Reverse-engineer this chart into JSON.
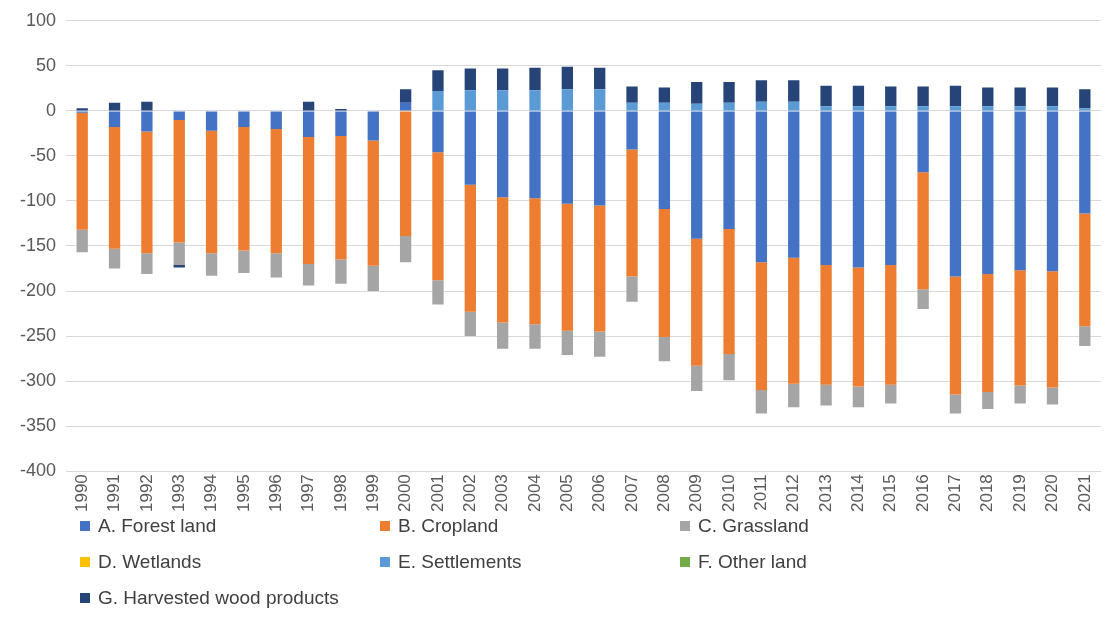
{
  "chart_data": {
    "type": "bar",
    "stacked": true,
    "categories": [
      "1990",
      "1991",
      "1992",
      "1993",
      "1994",
      "1995",
      "1996",
      "1997",
      "1998",
      "1999",
      "2000",
      "2001",
      "2002",
      "2003",
      "2004",
      "2005",
      "2006",
      "2007",
      "2008",
      "2009",
      "2010",
      "2011",
      "2012",
      "2013",
      "2014",
      "2015",
      "2016",
      "2017",
      "2018",
      "2019",
      "2020",
      "2021"
    ],
    "series": [
      {
        "name": "A. Forest land",
        "color": "#4472c4",
        "values": [
          -2,
          -18,
          -23,
          -10,
          -22,
          -18,
          -20,
          -29,
          -28,
          -33,
          9,
          -46,
          -82,
          -96,
          -97,
          -103,
          -105,
          -43,
          -109,
          -142,
          -131,
          -168,
          -163,
          -171,
          -174,
          -171,
          -68,
          -184,
          -181,
          -177,
          -178,
          -114
        ]
      },
      {
        "name": "B. Cropland",
        "color": "#ed7d31",
        "values": [
          -130,
          -135,
          -135,
          -136,
          -136,
          -137,
          -138,
          -141,
          -137,
          -139,
          -139,
          -142,
          -141,
          -139,
          -140,
          -141,
          -140,
          -141,
          -142,
          -141,
          -139,
          -142,
          -140,
          -133,
          -132,
          -133,
          -130,
          -131,
          -131,
          -128,
          -129,
          -125
        ]
      },
      {
        "name": "C. Grassland",
        "color": "#a5a5a5",
        "values": [
          -25,
          -22,
          -23,
          -25,
          -25,
          -25,
          -27,
          -24,
          -27,
          -28,
          -29,
          -27,
          -27,
          -29,
          -27,
          -27,
          -28,
          -28,
          -27,
          -28,
          -29,
          -26,
          -26,
          -23,
          -23,
          -21,
          -22,
          -21,
          -19,
          -20,
          -19,
          -22
        ]
      },
      {
        "name": "D. Wetlands",
        "color": "#ffc000",
        "values": [
          0,
          0,
          0,
          0,
          0,
          0,
          0,
          0,
          0,
          0,
          0,
          0,
          0,
          0,
          0,
          0,
          0,
          0,
          0,
          0,
          0,
          0,
          0,
          0,
          0,
          0,
          0,
          0,
          0,
          0,
          0,
          0
        ]
      },
      {
        "name": "E. Settlements",
        "color": "#5b9bd5",
        "values": [
          0,
          0,
          0,
          0,
          0,
          0,
          0,
          0,
          0,
          0,
          0,
          22,
          23,
          23,
          23,
          24,
          24,
          9,
          9,
          8,
          9,
          10,
          10,
          5,
          5,
          5,
          5,
          5,
          5,
          5,
          5,
          3
        ]
      },
      {
        "name": "F. Other land",
        "color": "#70ad47",
        "values": [
          0,
          0,
          0,
          0,
          0,
          0,
          0,
          0,
          0,
          0,
          0,
          0,
          0,
          0,
          0,
          0,
          0,
          0,
          0,
          0,
          0,
          0,
          0,
          0,
          0,
          0,
          0,
          0,
          0,
          0,
          0,
          0
        ]
      },
      {
        "name": "G. Harvested wood products",
        "color": "#264478",
        "values": [
          3,
          9,
          10,
          -3,
          0,
          0,
          0,
          10,
          2,
          0,
          15,
          23,
          24,
          24,
          25,
          25,
          24,
          18,
          17,
          24,
          23,
          24,
          24,
          23,
          23,
          22,
          22,
          23,
          21,
          21,
          21,
          21
        ]
      }
    ],
    "ylim": [
      -400,
      100
    ],
    "yticks": [
      -400,
      -350,
      -300,
      -250,
      -200,
      -150,
      -100,
      -50,
      0,
      50,
      100
    ],
    "grid": "y",
    "legend": "bottom"
  }
}
